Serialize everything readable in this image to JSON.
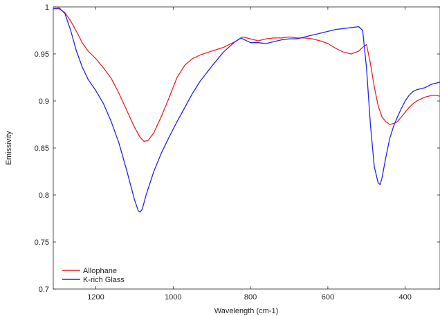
{
  "chart_data": {
    "type": "line",
    "title": "",
    "xlabel": "Wavelength (cm-1)",
    "ylabel": "Emissivity",
    "xlim": [
      1310,
      310
    ],
    "ylim": [
      0.7,
      1.0
    ],
    "x_reversed": true,
    "xticks": [
      1200,
      1000,
      800,
      600,
      400
    ],
    "yticks": [
      0.7,
      0.75,
      0.8,
      0.85,
      0.9,
      0.95,
      1
    ],
    "ytick_labels": [
      "0.7",
      "0.75",
      "0.8",
      "0.85",
      "0.9",
      "0.95",
      "1"
    ],
    "grid": false,
    "legend_position": "bottom-left",
    "series": [
      {
        "name": "Allophane",
        "color": "#ee2222",
        "x": [
          1310,
          1295,
          1280,
          1265,
          1250,
          1235,
          1220,
          1200,
          1180,
          1160,
          1140,
          1120,
          1100,
          1085,
          1075,
          1065,
          1050,
          1030,
          1010,
          990,
          970,
          950,
          930,
          900,
          870,
          840,
          820,
          800,
          780,
          760,
          740,
          720,
          700,
          680,
          660,
          640,
          620,
          600,
          580,
          560,
          540,
          520,
          510,
          500,
          490,
          480,
          470,
          460,
          450,
          440,
          430,
          420,
          410,
          400,
          390,
          380,
          370,
          360,
          350,
          340,
          330,
          320,
          310
        ],
        "y": [
          0.998,
          0.998,
          0.994,
          0.985,
          0.974,
          0.962,
          0.953,
          0.945,
          0.935,
          0.924,
          0.908,
          0.89,
          0.872,
          0.861,
          0.857,
          0.858,
          0.866,
          0.884,
          0.904,
          0.925,
          0.938,
          0.945,
          0.949,
          0.953,
          0.957,
          0.963,
          0.968,
          0.966,
          0.964,
          0.966,
          0.967,
          0.967,
          0.968,
          0.967,
          0.967,
          0.966,
          0.964,
          0.961,
          0.956,
          0.952,
          0.95,
          0.953,
          0.957,
          0.96,
          0.94,
          0.915,
          0.895,
          0.883,
          0.878,
          0.875,
          0.876,
          0.878,
          0.883,
          0.888,
          0.893,
          0.897,
          0.9,
          0.902,
          0.904,
          0.905,
          0.906,
          0.906,
          0.905
        ]
      },
      {
        "name": "K-rich Glass",
        "color": "#2222ee",
        "x": [
          1310,
          1295,
          1280,
          1265,
          1250,
          1235,
          1220,
          1200,
          1180,
          1160,
          1140,
          1120,
          1100,
          1090,
          1085,
          1080,
          1070,
          1050,
          1030,
          1010,
          990,
          970,
          950,
          930,
          900,
          870,
          840,
          825,
          800,
          780,
          760,
          740,
          720,
          700,
          680,
          660,
          640,
          620,
          600,
          580,
          560,
          540,
          520,
          510,
          500,
          490,
          480,
          470,
          465,
          460,
          450,
          440,
          430,
          420,
          410,
          400,
          390,
          380,
          370,
          360,
          350,
          340,
          330,
          320,
          310
        ],
        "y": [
          0.998,
          0.999,
          0.993,
          0.975,
          0.953,
          0.936,
          0.923,
          0.911,
          0.897,
          0.878,
          0.855,
          0.826,
          0.795,
          0.783,
          0.782,
          0.785,
          0.8,
          0.825,
          0.845,
          0.862,
          0.878,
          0.893,
          0.908,
          0.921,
          0.937,
          0.952,
          0.963,
          0.967,
          0.962,
          0.962,
          0.961,
          0.963,
          0.965,
          0.966,
          0.966,
          0.968,
          0.97,
          0.972,
          0.974,
          0.976,
          0.977,
          0.978,
          0.979,
          0.975,
          0.935,
          0.875,
          0.83,
          0.813,
          0.811,
          0.818,
          0.84,
          0.86,
          0.873,
          0.883,
          0.892,
          0.9,
          0.906,
          0.91,
          0.912,
          0.913,
          0.914,
          0.916,
          0.918,
          0.919,
          0.92
        ]
      }
    ]
  }
}
